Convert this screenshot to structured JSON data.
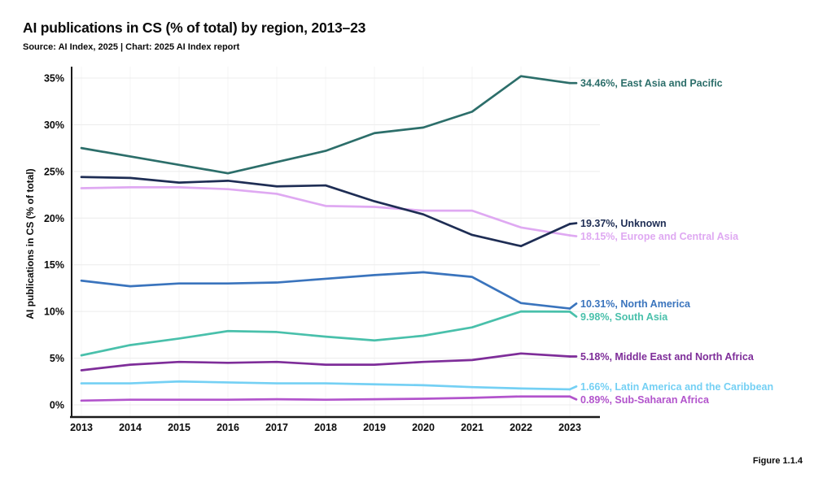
{
  "header": {
    "title": "AI publications in CS (% of total) by region, 2013–23",
    "source_line": "Source: AI Index, 2025 | Chart: 2025 AI Index report"
  },
  "footer": {
    "figure_label": "Figure 1.1.4"
  },
  "colors": {
    "axis": "#1a1a1a",
    "grid_horizontal": "#ececec",
    "grid_vertical": "#f4f4f4",
    "text": "#0a0a0a"
  },
  "chart_data": {
    "type": "line",
    "title": "AI publications in CS (% of total) by region, 2013–23",
    "xlabel": "",
    "ylabel": "AI publications in CS (% of total)",
    "x": [
      2013,
      2014,
      2015,
      2016,
      2017,
      2018,
      2019,
      2020,
      2021,
      2022,
      2023
    ],
    "y_ticks": [
      0,
      5,
      10,
      15,
      20,
      25,
      30,
      35
    ],
    "y_tick_suffix": "%",
    "ylim": [
      0,
      35
    ],
    "grid": true,
    "legend_position": "right-end-labels",
    "series": [
      {
        "name": "East Asia and Pacific",
        "color": "#2c6e6a",
        "end_label": "34.46%, East Asia and Pacific",
        "values": [
          27.5,
          26.6,
          25.7,
          24.8,
          26.0,
          27.2,
          29.1,
          29.7,
          31.4,
          35.2,
          34.46
        ]
      },
      {
        "name": "Unknown",
        "color": "#1e2d54",
        "end_label": "19.37%, Unknown",
        "values": [
          24.4,
          24.3,
          23.8,
          24.0,
          23.4,
          23.5,
          21.8,
          20.4,
          18.2,
          17.0,
          19.37
        ]
      },
      {
        "name": "Europe and Central Asia",
        "color": "#dfa9f2",
        "end_label": "18.15%, Europe and Central Asia",
        "values": [
          23.2,
          23.3,
          23.3,
          23.1,
          22.6,
          21.3,
          21.2,
          20.8,
          20.8,
          19.0,
          18.15
        ]
      },
      {
        "name": "North America",
        "color": "#3a74bd",
        "end_label": "10.31%, North America",
        "values": [
          13.3,
          12.7,
          13.0,
          13.0,
          13.1,
          13.5,
          13.9,
          14.2,
          13.7,
          10.9,
          10.31
        ]
      },
      {
        "name": "South Asia",
        "color": "#49c0ab",
        "end_label": "9.98%, South Asia",
        "values": [
          5.3,
          6.4,
          7.1,
          7.9,
          7.8,
          7.3,
          6.9,
          7.4,
          8.3,
          10.0,
          9.98
        ]
      },
      {
        "name": "Middle East and North Africa",
        "color": "#7e2d99",
        "end_label": "5.18%, Middle East and North Africa",
        "values": [
          3.7,
          4.3,
          4.6,
          4.5,
          4.6,
          4.3,
          4.3,
          4.6,
          4.8,
          5.5,
          5.18
        ]
      },
      {
        "name": "Latin America and the Caribbean",
        "color": "#74d0f4",
        "end_label": "1.66%, Latin America and the Caribbean",
        "values": [
          2.3,
          2.3,
          2.5,
          2.4,
          2.3,
          2.3,
          2.2,
          2.1,
          1.9,
          1.75,
          1.66
        ]
      },
      {
        "name": "Sub-Saharan Africa",
        "color": "#b254cc",
        "end_label": "0.89%, Sub-Saharan Africa",
        "values": [
          0.45,
          0.55,
          0.55,
          0.55,
          0.6,
          0.55,
          0.6,
          0.65,
          0.75,
          0.9,
          0.89
        ]
      }
    ]
  }
}
